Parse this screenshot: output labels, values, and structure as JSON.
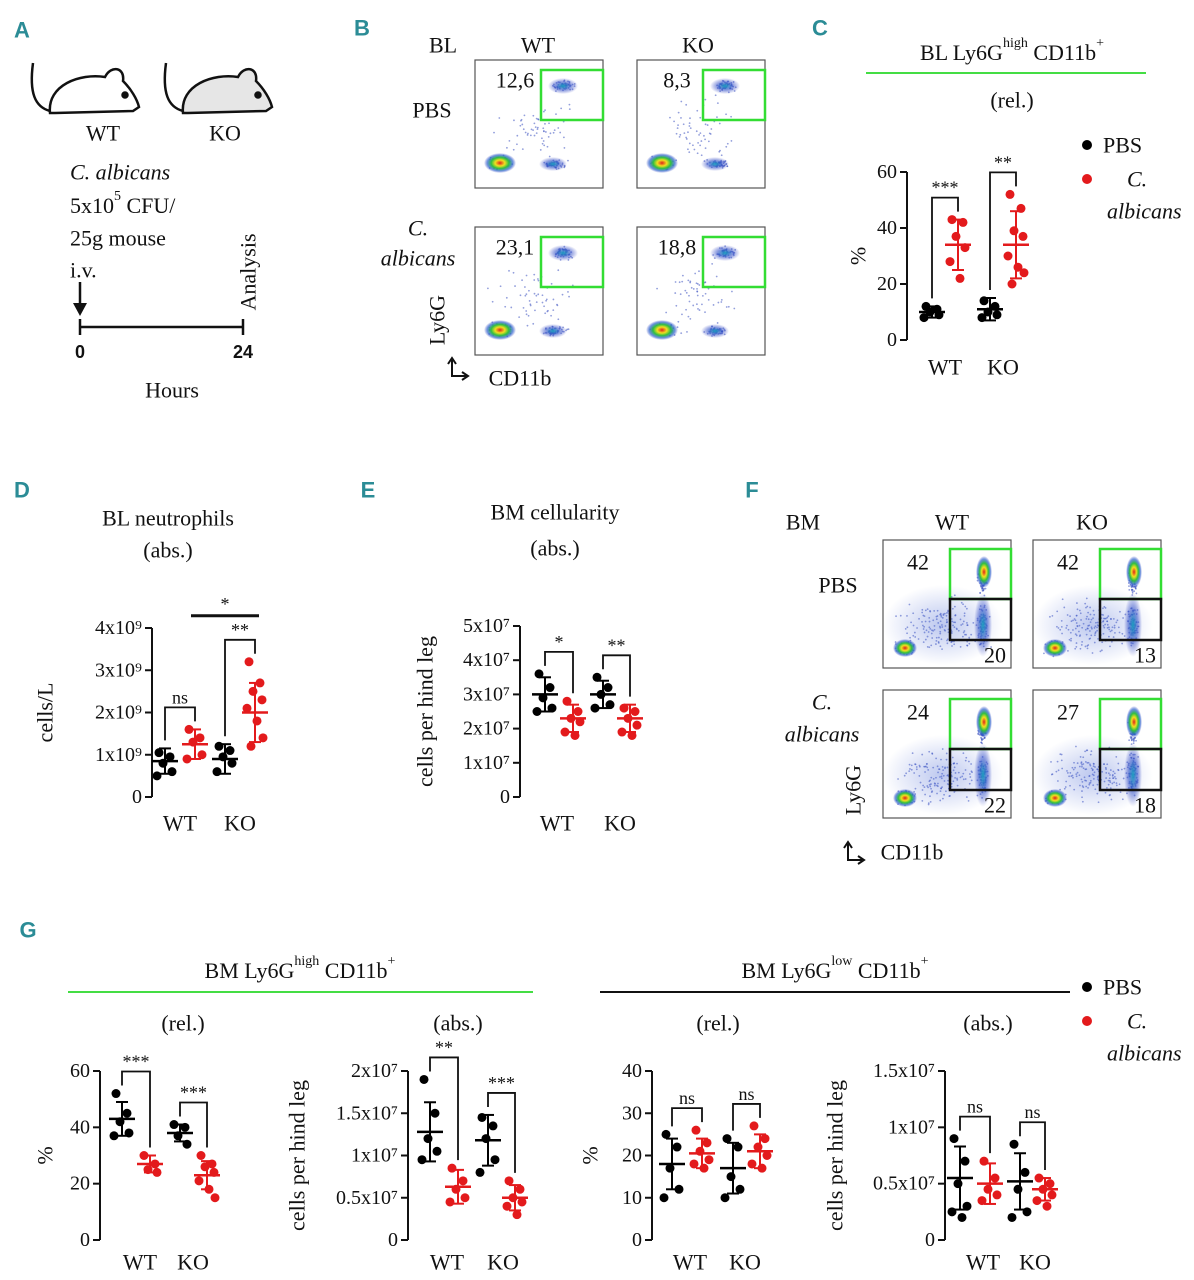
{
  "panel_a": {
    "label": "A",
    "mice": [
      "WT",
      "KO"
    ],
    "species": "C. albicans",
    "dose": [
      "5x10",
      "5",
      " CFU/"
    ],
    "per_weight": "25g mouse",
    "route": "i.v.",
    "timeline": {
      "ticks": [
        "0",
        "24"
      ],
      "event": "Analysis",
      "axis_label": "Hours"
    }
  },
  "panel_b": {
    "label": "B",
    "tissue": "BL",
    "genotypes": [
      "WT",
      "KO"
    ],
    "conditions": [
      {
        "lines": [
          "PBS"
        ],
        "italic": false
      },
      {
        "lines": [
          "C.",
          "albicans"
        ],
        "italic": true
      }
    ],
    "gates": [
      [
        "12,6",
        "8,3"
      ],
      [
        "23,1",
        "18,8"
      ]
    ],
    "y_axis": "Ly6G",
    "x_axis": "CD11b"
  },
  "panel_c": {
    "label": "C",
    "title": [
      "BL Ly6G",
      "high",
      " CD11b",
      "+"
    ],
    "legend": [
      {
        "lines": [
          "PBS"
        ],
        "color": "#000000",
        "italic": false
      },
      {
        "lines": [
          "C.",
          "albicans"
        ],
        "color": "#e31a1c",
        "italic": true
      }
    ],
    "plot": {
      "subtitle": "(rel.)",
      "ylabel": "%",
      "ylim": [
        0,
        60
      ],
      "yticks": [
        0,
        20,
        40,
        60
      ],
      "categories": [
        "WT",
        "KO"
      ],
      "groups": [
        {
          "color": "#000000",
          "mean": 10,
          "sd": 2,
          "points": [
            12,
            11,
            10,
            9,
            8
          ]
        },
        {
          "color": "#e31a1c",
          "mean": 34,
          "sd": 9,
          "points": [
            43,
            42,
            37,
            33,
            28,
            22
          ]
        },
        {
          "color": "#000000",
          "mean": 11,
          "sd": 4,
          "points": [
            14,
            12,
            10,
            9,
            8
          ]
        },
        {
          "color": "#e31a1c",
          "mean": 34,
          "sd": 12,
          "points": [
            52,
            47,
            39,
            37,
            30,
            26,
            24,
            20
          ]
        }
      ],
      "comparisons": [
        "***",
        "**"
      ]
    }
  },
  "panel_d": {
    "label": "D",
    "plot": {
      "title": "BL neutrophils",
      "subtitle": "(abs.)",
      "ylabel": "cells/L",
      "ylim": [
        0,
        4000000000
      ],
      "yticks": [
        0,
        {
          "value": 1000000000,
          "label": "1x10⁹"
        },
        {
          "value": 2000000000,
          "label": "2x10⁹"
        },
        {
          "value": 3000000000,
          "label": "3x10⁹"
        },
        {
          "value": 4000000000,
          "label": "4x10⁹"
        }
      ],
      "categories": [
        "WT",
        "KO"
      ],
      "groups": [
        {
          "color": "#000000",
          "mean": 850000000,
          "sd": 300000000,
          "points": [
            1050000000,
            950000000,
            800000000,
            600000000,
            500000000
          ]
        },
        {
          "color": "#e31a1c",
          "mean": 1250000000,
          "sd": 350000000,
          "points": [
            1600000000,
            1400000000,
            1300000000,
            1000000000,
            900000000
          ]
        },
        {
          "color": "#000000",
          "mean": 900000000,
          "sd": 350000000,
          "points": [
            1200000000,
            1100000000,
            950000000,
            800000000,
            600000000
          ]
        },
        {
          "color": "#e31a1c",
          "mean": 2000000000,
          "sd": 700000000,
          "points": [
            3200000000,
            2700000000,
            2500000000,
            2300000000,
            2100000000,
            1800000000,
            1400000000,
            1200000000
          ]
        }
      ],
      "comparisons": [
        "ns",
        "**"
      ],
      "across": "*"
    }
  },
  "panel_e": {
    "label": "E",
    "plot": {
      "title": "BM cellularity",
      "subtitle": "(abs.)",
      "ylabel": "cells per hind leg",
      "ylim": [
        0,
        50000000
      ],
      "yticks": [
        0,
        {
          "value": 10000000,
          "label": "1x10⁷"
        },
        {
          "value": 20000000,
          "label": "2x10⁷"
        },
        {
          "value": 30000000,
          "label": "3x10⁷"
        },
        {
          "value": 40000000,
          "label": "4x10⁷"
        },
        {
          "value": 50000000,
          "label": "5x10⁷"
        }
      ],
      "categories": [
        "WT",
        "KO"
      ],
      "groups": [
        {
          "color": "#000000",
          "mean": 30000000,
          "sd": 5000000,
          "points": [
            36000000,
            32000000,
            29000000,
            26000000,
            25000000
          ]
        },
        {
          "color": "#e31a1c",
          "mean": 23000000,
          "sd": 4000000,
          "points": [
            28000000,
            25000000,
            23000000,
            22000000,
            19000000,
            18000000
          ]
        },
        {
          "color": "#000000",
          "mean": 30000000,
          "sd": 4000000,
          "points": [
            35000000,
            32000000,
            30000000,
            27000000,
            26000000
          ]
        },
        {
          "color": "#e31a1c",
          "mean": 23000000,
          "sd": 4000000,
          "points": [
            26000000,
            25000000,
            23000000,
            21000000,
            19000000,
            18000000
          ]
        }
      ],
      "comparisons": [
        "*",
        "**"
      ]
    }
  },
  "panel_f": {
    "label": "F",
    "tissue": "BM",
    "genotypes": [
      "WT",
      "KO"
    ],
    "conditions": [
      {
        "lines": [
          "PBS"
        ],
        "italic": false
      },
      {
        "lines": [
          "C.",
          "albicans"
        ],
        "italic": true
      }
    ],
    "high_gates": [
      [
        "42",
        "42"
      ],
      [
        "24",
        "27"
      ]
    ],
    "low_gates": [
      [
        "20",
        "13"
      ],
      [
        "22",
        "18"
      ]
    ],
    "y_axis": "Ly6G",
    "x_axis": "CD11b"
  },
  "panel_g": {
    "label": "G",
    "high_title": [
      "BM Ly6G",
      "high",
      " CD11b",
      "+"
    ],
    "low_title": [
      "BM Ly6G",
      "low",
      " CD11b",
      "+"
    ],
    "legend": [
      {
        "lines": [
          "PBS"
        ],
        "color": "#000000",
        "italic": false
      },
      {
        "lines": [
          "C.",
          "albicans"
        ],
        "color": "#e31a1c",
        "italic": true
      }
    ],
    "plots": [
      {
        "subtitle": "(rel.)",
        "ylabel": "%",
        "ylim": [
          0,
          60
        ],
        "yticks": [
          0,
          20,
          40,
          60
        ],
        "categories": [
          "WT",
          "KO"
        ],
        "groups": [
          {
            "color": "#000000",
            "mean": 43,
            "sd": 6,
            "points": [
              52,
              45,
              42,
              38,
              37
            ]
          },
          {
            "color": "#e31a1c",
            "mean": 27,
            "sd": 3,
            "points": [
              30,
              27,
              25,
              24
            ]
          },
          {
            "color": "#000000",
            "mean": 38,
            "sd": 3,
            "points": [
              41,
              40,
              37,
              34
            ]
          },
          {
            "color": "#e31a1c",
            "mean": 23,
            "sd": 5,
            "points": [
              30,
              27,
              26,
              24,
              21,
              18,
              15
            ]
          }
        ],
        "comparisons": [
          "***",
          "***"
        ]
      },
      {
        "subtitle": "(abs.)",
        "ylabel": "cells per hind leg",
        "ylim": [
          0,
          20000000
        ],
        "yticks": [
          0,
          {
            "value": 5000000,
            "label": "0.5x10⁷"
          },
          {
            "value": 10000000,
            "label": "1x10⁷"
          },
          {
            "value": 15000000,
            "label": "1.5x10⁷"
          },
          {
            "value": 20000000,
            "label": "2x10⁷"
          }
        ],
        "categories": [
          "WT",
          "KO"
        ],
        "groups": [
          {
            "color": "#000000",
            "mean": 12800000,
            "sd": 3500000,
            "points": [
              19000000,
              15000000,
              12000000,
              10500000,
              9500000
            ]
          },
          {
            "color": "#e31a1c",
            "mean": 6300000,
            "sd": 2000000,
            "points": [
              8500000,
              7000000,
              6000000,
              5000000,
              4500000
            ]
          },
          {
            "color": "#000000",
            "mean": 11800000,
            "sd": 3000000,
            "points": [
              14500000,
              13500000,
              12000000,
              9500000,
              8000000
            ]
          },
          {
            "color": "#e31a1c",
            "mean": 5000000,
            "sd": 1500000,
            "points": [
              7000000,
              6000000,
              5000000,
              4500000,
              4000000,
              3000000
            ]
          }
        ],
        "comparisons": [
          "**",
          "***"
        ]
      },
      {
        "subtitle": "(rel.)",
        "ylabel": "%",
        "ylim": [
          0,
          40
        ],
        "yticks": [
          0,
          10,
          20,
          30,
          40
        ],
        "categories": [
          "WT",
          "KO"
        ],
        "groups": [
          {
            "color": "#000000",
            "mean": 18,
            "sd": 6,
            "points": [
              25,
              22,
              17,
              12,
              10
            ]
          },
          {
            "color": "#e31a1c",
            "mean": 20.5,
            "sd": 3.5,
            "points": [
              26,
              23,
              21,
              19,
              18,
              17
            ]
          },
          {
            "color": "#000000",
            "mean": 17,
            "sd": 6,
            "points": [
              24,
              22,
              15,
              12,
              10
            ]
          },
          {
            "color": "#e31a1c",
            "mean": 21,
            "sd": 4,
            "points": [
              27,
              24,
              22,
              20,
              18,
              17
            ]
          }
        ],
        "comparisons": [
          "ns",
          "ns"
        ]
      },
      {
        "subtitle": "(abs.)",
        "ylabel": "cells per hind leg",
        "ylim": [
          0,
          15000000
        ],
        "yticks": [
          0,
          {
            "value": 5000000,
            "label": "0.5x10⁷"
          },
          {
            "value": 10000000,
            "label": "1x10⁷"
          },
          {
            "value": 15000000,
            "label": "1.5x10⁷"
          }
        ],
        "categories": [
          "WT",
          "KO"
        ],
        "groups": [
          {
            "color": "#000000",
            "mean": 5500000,
            "sd": 2800000,
            "points": [
              9000000,
              7000000,
              5000000,
              3000000,
              2500000,
              2000000
            ]
          },
          {
            "color": "#e31a1c",
            "mean": 5000000,
            "sd": 1800000,
            "points": [
              7000000,
              5500000,
              4500000,
              4000000,
              3500000
            ]
          },
          {
            "color": "#000000",
            "mean": 5200000,
            "sd": 2500000,
            "points": [
              8500000,
              6000000,
              4500000,
              2500000,
              2000000
            ]
          },
          {
            "color": "#e31a1c",
            "mean": 4500000,
            "sd": 1000000,
            "points": [
              5500000,
              5000000,
              4500000,
              4000000,
              3500000,
              3000000
            ]
          }
        ],
        "comparisons": [
          "ns",
          "ns"
        ]
      }
    ]
  }
}
